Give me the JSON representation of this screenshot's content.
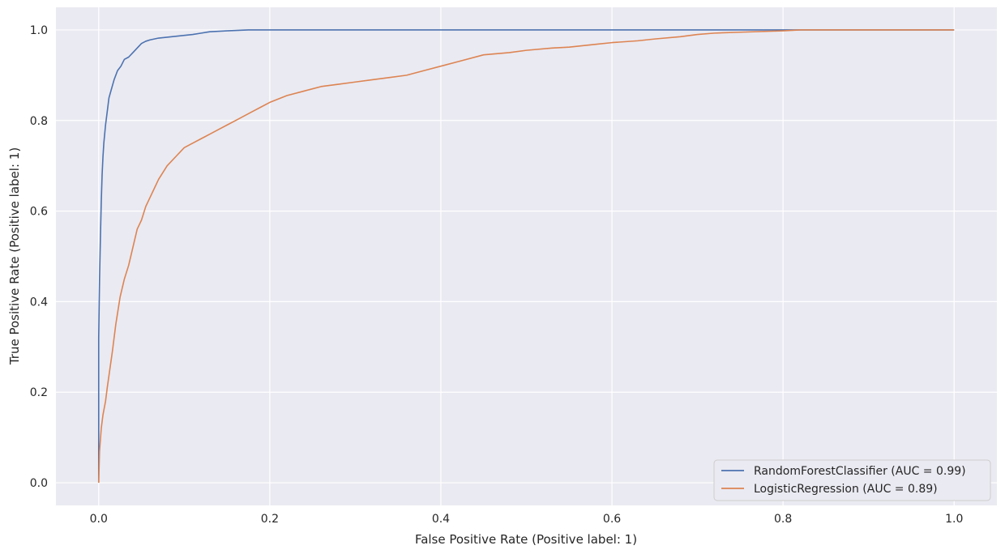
{
  "chart_data": {
    "type": "line",
    "title": "",
    "xlabel": "False Positive Rate (Positive label: 1)",
    "ylabel": "True Positive Rate (Positive label: 1)",
    "xlim": [
      -0.05,
      1.05
    ],
    "ylim": [
      -0.05,
      1.05
    ],
    "xticks": [
      0.0,
      0.2,
      0.4,
      0.6,
      0.8,
      1.0
    ],
    "xtick_labels": [
      "0.0",
      "0.2",
      "0.4",
      "0.6",
      "0.8",
      "1.0"
    ],
    "yticks": [
      0.0,
      0.2,
      0.4,
      0.6,
      0.8,
      1.0
    ],
    "ytick_labels": [
      "0.0",
      "0.2",
      "0.4",
      "0.6",
      "0.8",
      "1.0"
    ],
    "grid": true,
    "legend_position": "bottom-right",
    "background_color": "#eaeaf2",
    "series": [
      {
        "name": "RandomForestClassifier (AUC = 0.99)",
        "color": "#4c72b0",
        "x": [
          0.0,
          0.0,
          0.001,
          0.002,
          0.003,
          0.004,
          0.005,
          0.006,
          0.008,
          0.01,
          0.012,
          0.015,
          0.018,
          0.022,
          0.026,
          0.03,
          0.035,
          0.04,
          0.045,
          0.05,
          0.055,
          0.06,
          0.07,
          0.08,
          0.09,
          0.1,
          0.11,
          0.12,
          0.13,
          0.15,
          0.175,
          0.2,
          0.3,
          0.5,
          0.7,
          0.8,
          1.0
        ],
        "y": [
          0.0,
          0.32,
          0.45,
          0.54,
          0.62,
          0.68,
          0.72,
          0.75,
          0.79,
          0.82,
          0.85,
          0.87,
          0.89,
          0.91,
          0.92,
          0.935,
          0.94,
          0.95,
          0.96,
          0.97,
          0.975,
          0.978,
          0.982,
          0.984,
          0.986,
          0.988,
          0.99,
          0.993,
          0.996,
          0.998,
          1.0,
          1.0,
          1.0,
          1.0,
          1.0,
          1.0,
          1.0
        ]
      },
      {
        "name": "LogisticRegression (AUC = 0.89)",
        "color": "#dd8452",
        "x": [
          0.0,
          0.001,
          0.003,
          0.005,
          0.008,
          0.01,
          0.013,
          0.016,
          0.02,
          0.025,
          0.03,
          0.035,
          0.04,
          0.045,
          0.05,
          0.055,
          0.06,
          0.065,
          0.07,
          0.08,
          0.09,
          0.1,
          0.11,
          0.12,
          0.13,
          0.14,
          0.15,
          0.16,
          0.17,
          0.18,
          0.19,
          0.2,
          0.22,
          0.24,
          0.26,
          0.28,
          0.3,
          0.32,
          0.34,
          0.36,
          0.38,
          0.4,
          0.42,
          0.45,
          0.48,
          0.5,
          0.53,
          0.55,
          0.58,
          0.6,
          0.63,
          0.65,
          0.68,
          0.7,
          0.72,
          0.75,
          0.8,
          0.82,
          0.9,
          1.0
        ],
        "y": [
          0.0,
          0.07,
          0.12,
          0.15,
          0.18,
          0.21,
          0.25,
          0.29,
          0.35,
          0.41,
          0.45,
          0.48,
          0.52,
          0.56,
          0.58,
          0.61,
          0.63,
          0.65,
          0.67,
          0.7,
          0.72,
          0.74,
          0.75,
          0.76,
          0.77,
          0.78,
          0.79,
          0.8,
          0.81,
          0.82,
          0.83,
          0.84,
          0.855,
          0.865,
          0.875,
          0.88,
          0.885,
          0.89,
          0.895,
          0.9,
          0.91,
          0.92,
          0.93,
          0.945,
          0.95,
          0.955,
          0.96,
          0.962,
          0.968,
          0.972,
          0.976,
          0.98,
          0.985,
          0.99,
          0.993,
          0.995,
          0.998,
          1.0,
          1.0,
          1.0
        ]
      }
    ]
  }
}
